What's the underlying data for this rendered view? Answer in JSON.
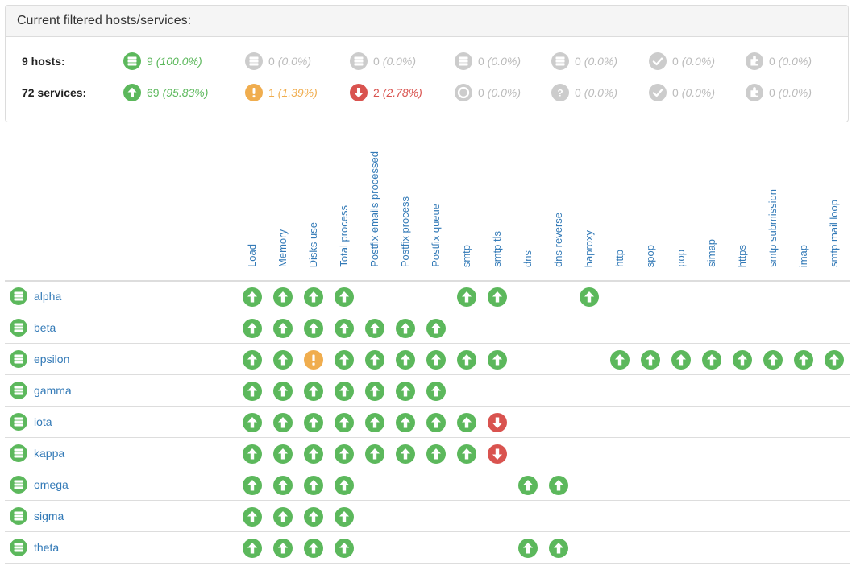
{
  "summary": {
    "title": "Current filtered hosts/services:",
    "hosts": {
      "label": "9 hosts:",
      "items": [
        {
          "state": "up",
          "icon": "server-up-icon",
          "count": "9",
          "pct": "(100.0%)"
        },
        {
          "state": "dim",
          "icon": "server-down-icon",
          "count": "0",
          "pct": "(0.0%)"
        },
        {
          "state": "dim",
          "icon": "server-unreachable-icon",
          "count": "0",
          "pct": "(0.0%)"
        },
        {
          "state": "dim",
          "icon": "server-pending-icon",
          "count": "0",
          "pct": "(0.0%)"
        },
        {
          "state": "dim",
          "icon": "server-unknown-icon",
          "count": "0",
          "pct": "(0.0%)"
        },
        {
          "state": "dim",
          "icon": "check-icon",
          "count": "0",
          "pct": "(0.0%)"
        },
        {
          "state": "dim",
          "icon": "plugin-icon",
          "count": "0",
          "pct": "(0.0%)"
        }
      ]
    },
    "services": {
      "label": "72 services:",
      "items": [
        {
          "state": "ok",
          "icon": "arrow-up-icon",
          "count": "69",
          "pct": "(95.83%)"
        },
        {
          "state": "warning",
          "icon": "exclamation-icon",
          "count": "1",
          "pct": "(1.39%)"
        },
        {
          "state": "critical",
          "icon": "arrow-down-icon",
          "count": "2",
          "pct": "(2.78%)"
        },
        {
          "state": "dim",
          "icon": "ring-icon",
          "count": "0",
          "pct": "(0.0%)"
        },
        {
          "state": "dim",
          "icon": "question-icon",
          "count": "0",
          "pct": "(0.0%)"
        },
        {
          "state": "dim",
          "icon": "check-icon",
          "count": "0",
          "pct": "(0.0%)"
        },
        {
          "state": "dim",
          "icon": "plugin-icon",
          "count": "0",
          "pct": "(0.0%)"
        }
      ]
    }
  },
  "columns": [
    "Load",
    "Memory",
    "Disks use",
    "Total process",
    "Postfix emails processed",
    "Postfix process",
    "Postfix queue",
    "smtp",
    "smtp tls",
    "dns",
    "dns reverse",
    "haproxy",
    "http",
    "spop",
    "pop",
    "simap",
    "https",
    "smtp submission",
    "imap",
    "smtp mail loop"
  ],
  "hosts": [
    {
      "name": "alpha",
      "cells": [
        "ok",
        "ok",
        "ok",
        "ok",
        "",
        "",
        "",
        "ok",
        "ok",
        "",
        "",
        "ok",
        "",
        "",
        "",
        "",
        "",
        "",
        "",
        ""
      ]
    },
    {
      "name": "beta",
      "cells": [
        "ok",
        "ok",
        "ok",
        "ok",
        "ok",
        "ok",
        "ok",
        "",
        "",
        "",
        "",
        "",
        "",
        "",
        "",
        "",
        "",
        "",
        "",
        ""
      ]
    },
    {
      "name": "epsilon",
      "cells": [
        "ok",
        "ok",
        "warning",
        "ok",
        "ok",
        "ok",
        "ok",
        "ok",
        "ok",
        "",
        "",
        "",
        "ok",
        "ok",
        "ok",
        "ok",
        "ok",
        "ok",
        "ok",
        "ok"
      ]
    },
    {
      "name": "gamma",
      "cells": [
        "ok",
        "ok",
        "ok",
        "ok",
        "ok",
        "ok",
        "ok",
        "",
        "",
        "",
        "",
        "",
        "",
        "",
        "",
        "",
        "",
        "",
        "",
        ""
      ]
    },
    {
      "name": "iota",
      "cells": [
        "ok",
        "ok",
        "ok",
        "ok",
        "ok",
        "ok",
        "ok",
        "ok",
        "critical",
        "",
        "",
        "",
        "",
        "",
        "",
        "",
        "",
        "",
        "",
        ""
      ]
    },
    {
      "name": "kappa",
      "cells": [
        "ok",
        "ok",
        "ok",
        "ok",
        "ok",
        "ok",
        "ok",
        "ok",
        "critical",
        "",
        "",
        "",
        "",
        "",
        "",
        "",
        "",
        "",
        "",
        ""
      ]
    },
    {
      "name": "omega",
      "cells": [
        "ok",
        "ok",
        "ok",
        "ok",
        "",
        "",
        "",
        "",
        "",
        "ok",
        "ok",
        "",
        "",
        "",
        "",
        "",
        "",
        "",
        "",
        ""
      ]
    },
    {
      "name": "sigma",
      "cells": [
        "ok",
        "ok",
        "ok",
        "ok",
        "",
        "",
        "",
        "",
        "",
        "",
        "",
        "",
        "",
        "",
        "",
        "",
        "",
        "",
        "",
        ""
      ]
    },
    {
      "name": "theta",
      "cells": [
        "ok",
        "ok",
        "ok",
        "ok",
        "",
        "",
        "",
        "",
        "",
        "ok",
        "ok",
        "",
        "",
        "",
        "",
        "",
        "",
        "",
        "",
        ""
      ]
    }
  ],
  "colors": {
    "ok": "#5cb85c",
    "warning": "#f0ad4e",
    "critical": "#d9534f",
    "dim": "#cccccc",
    "link": "#337ab7"
  }
}
